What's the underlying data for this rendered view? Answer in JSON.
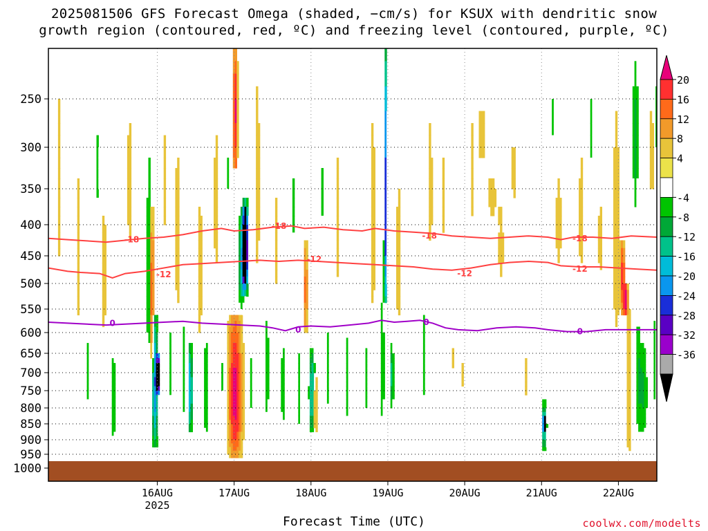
{
  "title": {
    "line1": "2025081506 GFS Forecast Omega (shaded, −cm/s) for KSUX with dendritic snow",
    "line2": "growth region (contoured, red, ºC) and freezing level (contoured, purple, ºC)"
  },
  "xlabel": "Forecast Time (UTC)",
  "watermark": "coolwx.com/modelts",
  "chart_data": {
    "type": "heatmap",
    "title": "2025081506 GFS Forecast Omega (shaded, −cm/s) for KSUX with dendritic snow growth region (contoured, red, ºC) and freezing level (contoured, purple, ºC)",
    "xlabel": "Forecast Time (UTC)",
    "ylabel": "",
    "x_range_hours": [
      -16,
      174
    ],
    "x_ticks": [
      {
        "hour": 18,
        "label": "16AUG",
        "sublabel": "2025"
      },
      {
        "hour": 42,
        "label": "17AUG"
      },
      {
        "hour": 66,
        "label": "18AUG"
      },
      {
        "hour": 90,
        "label": "19AUG"
      },
      {
        "hour": 114,
        "label": "20AUG"
      },
      {
        "hour": 138,
        "label": "21AUG"
      },
      {
        "hour": 162,
        "label": "22AUG"
      }
    ],
    "y_axis": "pressure (hPa), decreasing upward",
    "y_range": [
      1050,
      200
    ],
    "y_ticks": [
      250,
      300,
      350,
      400,
      450,
      500,
      550,
      600,
      650,
      700,
      750,
      800,
      850,
      900,
      950,
      1000
    ],
    "grid": true,
    "colorbar": {
      "position": "right",
      "levels": [
        20,
        16,
        12,
        8,
        4,
        -4,
        -8,
        -12,
        -16,
        -20,
        -24,
        -28,
        -32,
        -36
      ],
      "colors": [
        "#e8007a",
        "#ff3030",
        "#ff6a1a",
        "#f29a2a",
        "#e8c43a",
        "#ece24a",
        "#ffffff",
        "#00c400",
        "#00a837",
        "#00c28a",
        "#00bcd8",
        "#0a96ee",
        "#1a2ed8",
        "#5a00c4",
        "#9a00cc",
        "#aaaaaa",
        "#000000"
      ]
    },
    "ground_color": "#a24e22",
    "contours": [
      {
        "name": "-18",
        "color": "#ff4040",
        "points": [
          [
            -16,
            422
          ],
          [
            -10,
            424
          ],
          [
            -4,
            426
          ],
          [
            2,
            428
          ],
          [
            8,
            425
          ],
          [
            14,
            422
          ],
          [
            20,
            420
          ],
          [
            26,
            416
          ],
          [
            32,
            410
          ],
          [
            38,
            406
          ],
          [
            42,
            410
          ],
          [
            48,
            408
          ],
          [
            54,
            404
          ],
          [
            60,
            402
          ],
          [
            64,
            406
          ],
          [
            70,
            404
          ],
          [
            76,
            408
          ],
          [
            82,
            410
          ],
          [
            86,
            406
          ],
          [
            92,
            410
          ],
          [
            98,
            412
          ],
          [
            104,
            414
          ],
          [
            110,
            418
          ],
          [
            116,
            420
          ],
          [
            122,
            422
          ],
          [
            128,
            420
          ],
          [
            134,
            418
          ],
          [
            140,
            420
          ],
          [
            144,
            424
          ],
          [
            148,
            420
          ],
          [
            154,
            420
          ],
          [
            160,
            422
          ],
          [
            166,
            418
          ],
          [
            174,
            420
          ]
        ],
        "labels": [
          [
            10,
            424
          ],
          [
            56,
            402
          ],
          [
            103,
            418
          ],
          [
            150,
            422
          ]
        ]
      },
      {
        "name": "-12",
        "color": "#ff4040",
        "points": [
          [
            -16,
            472
          ],
          [
            -10,
            478
          ],
          [
            -6,
            480
          ],
          [
            0,
            482
          ],
          [
            4,
            490
          ],
          [
            8,
            482
          ],
          [
            14,
            478
          ],
          [
            18,
            474
          ],
          [
            22,
            470
          ],
          [
            26,
            466
          ],
          [
            32,
            464
          ],
          [
            38,
            462
          ],
          [
            44,
            460
          ],
          [
            50,
            458
          ],
          [
            56,
            460
          ],
          [
            62,
            458
          ],
          [
            68,
            460
          ],
          [
            74,
            462
          ],
          [
            80,
            464
          ],
          [
            86,
            466
          ],
          [
            92,
            468
          ],
          [
            98,
            470
          ],
          [
            104,
            474
          ],
          [
            110,
            476
          ],
          [
            116,
            472
          ],
          [
            122,
            466
          ],
          [
            128,
            462
          ],
          [
            134,
            460
          ],
          [
            140,
            462
          ],
          [
            144,
            468
          ],
          [
            150,
            470
          ],
          [
            156,
            470
          ],
          [
            162,
            472
          ],
          [
            168,
            474
          ],
          [
            174,
            476
          ]
        ],
        "labels": [
          [
            20,
            484
          ],
          [
            67,
            456
          ],
          [
            114,
            482
          ],
          [
            150,
            474
          ]
        ]
      },
      {
        "name": "0",
        "color": "#a000c8",
        "points": [
          [
            -16,
            578
          ],
          [
            -10,
            580
          ],
          [
            -4,
            582
          ],
          [
            2,
            584
          ],
          [
            8,
            582
          ],
          [
            14,
            580
          ],
          [
            20,
            578
          ],
          [
            26,
            576
          ],
          [
            32,
            580
          ],
          [
            38,
            582
          ],
          [
            44,
            584
          ],
          [
            50,
            586
          ],
          [
            54,
            590
          ],
          [
            58,
            596
          ],
          [
            62,
            588
          ],
          [
            66,
            586
          ],
          [
            72,
            588
          ],
          [
            78,
            584
          ],
          [
            84,
            580
          ],
          [
            88,
            574
          ],
          [
            92,
            578
          ],
          [
            96,
            576
          ],
          [
            100,
            574
          ],
          [
            104,
            580
          ],
          [
            108,
            590
          ],
          [
            112,
            594
          ],
          [
            118,
            596
          ],
          [
            124,
            590
          ],
          [
            130,
            588
          ],
          [
            136,
            590
          ],
          [
            140,
            594
          ],
          [
            146,
            598
          ],
          [
            152,
            598
          ],
          [
            158,
            594
          ],
          [
            164,
            594
          ],
          [
            170,
            594
          ],
          [
            174,
            594
          ]
        ],
        "labels": [
          [
            4,
            580
          ],
          [
            62,
            594
          ],
          [
            102,
            578
          ],
          [
            150,
            598
          ]
        ]
      }
    ]
  }
}
